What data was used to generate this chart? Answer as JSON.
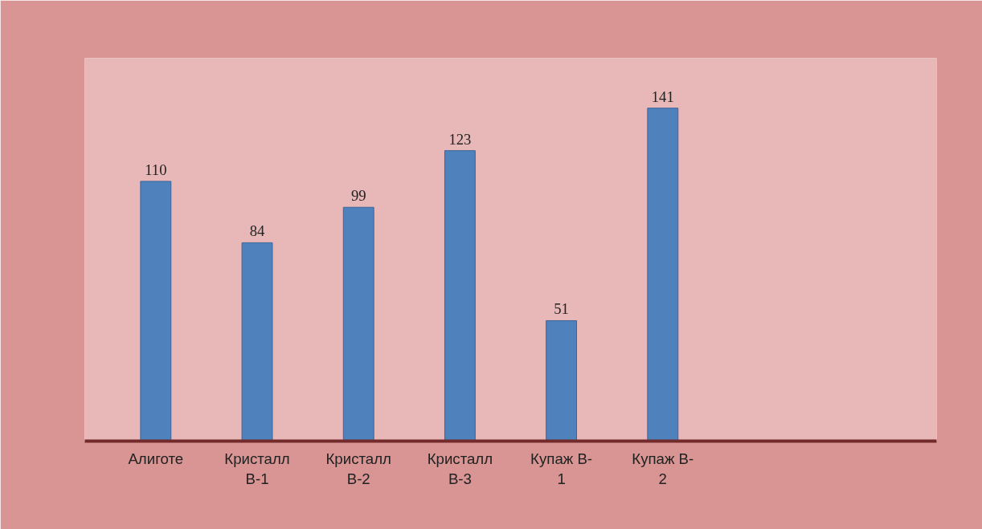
{
  "chart_data": {
    "type": "bar",
    "categories": [
      "Алиготе",
      "Кристалл В-1",
      "Кристалл В-2",
      "Кристалл В-3",
      "Купаж В-1",
      "Купаж В-2",
      null,
      null
    ],
    "values": [
      110,
      84,
      99,
      123,
      51,
      141,
      null,
      null
    ],
    "color": "#4f81bd",
    "data_labels": true
  }
}
